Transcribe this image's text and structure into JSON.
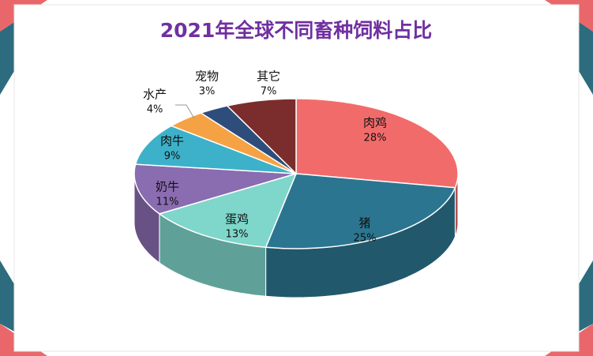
{
  "chart_data": {
    "type": "pie",
    "title": "2021年全球不同畜种饲料占比",
    "categories": [
      "肉鸡",
      "猪",
      "蛋鸡",
      "奶牛",
      "肉牛",
      "水产",
      "宠物",
      "其它"
    ],
    "values": [
      28,
      25,
      13,
      11,
      9,
      4,
      3,
      7
    ],
    "value_labels": [
      "28%",
      "25%",
      "13%",
      "11%",
      "9%",
      "4%",
      "3%",
      "7%"
    ],
    "colors": [
      "#f26b6b",
      "#2c7590",
      "#7fd6ca",
      "#8a6cb0",
      "#3db1c9",
      "#f5a245",
      "#2e4d7a",
      "#7b2d2d"
    ]
  }
}
